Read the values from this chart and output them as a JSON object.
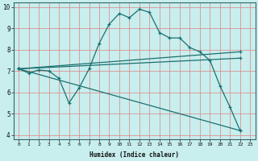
{
  "xlabel": "Humidex (Indice chaleur)",
  "xlim": [
    -0.5,
    23.5
  ],
  "ylim": [
    3.8,
    10.2
  ],
  "xticks": [
    0,
    1,
    2,
    3,
    4,
    5,
    6,
    7,
    8,
    9,
    10,
    11,
    12,
    13,
    14,
    15,
    16,
    17,
    18,
    19,
    20,
    21,
    22,
    23
  ],
  "yticks": [
    4,
    5,
    6,
    7,
    8,
    9,
    10
  ],
  "bg_color": "#c8eeee",
  "grid_color": "#e08080",
  "line_color": "#1a7070",
  "lines": [
    {
      "x": [
        0,
        1,
        2,
        3,
        4,
        5,
        6,
        7,
        8,
        9,
        10,
        11,
        12,
        13,
        14,
        15,
        16,
        17,
        18,
        19,
        20,
        21,
        22
      ],
      "y": [
        7.1,
        6.9,
        7.05,
        7.0,
        6.65,
        5.5,
        6.2,
        7.1,
        8.3,
        9.2,
        9.7,
        9.5,
        9.9,
        9.75,
        8.8,
        8.55,
        8.55,
        8.1,
        7.9,
        7.5,
        6.3,
        5.3,
        4.2
      ]
    },
    {
      "x": [
        0,
        22
      ],
      "y": [
        7.1,
        7.9
      ]
    },
    {
      "x": [
        0,
        22
      ],
      "y": [
        7.1,
        7.6
      ]
    },
    {
      "x": [
        0,
        22
      ],
      "y": [
        7.1,
        4.2
      ]
    }
  ]
}
